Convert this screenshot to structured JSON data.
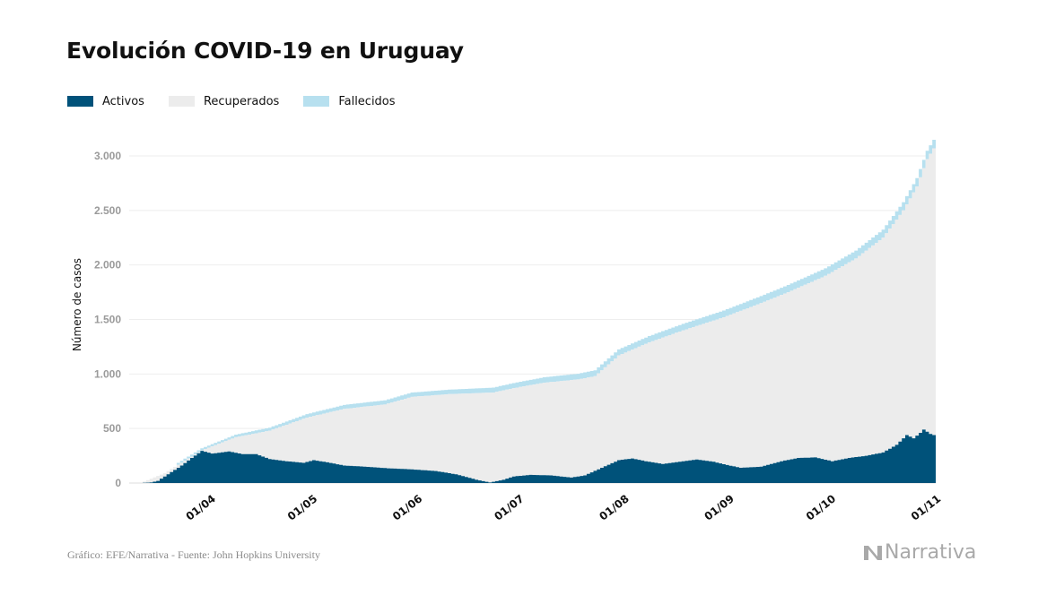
{
  "header": {
    "title": "Evolución COVID-19 en Uruguay"
  },
  "legend": [
    {
      "label": "Activos",
      "color": "#00527a"
    },
    {
      "label": "Recuperados",
      "color": "#ececec"
    },
    {
      "label": "Fallecidos",
      "color": "#b7e0ef"
    }
  ],
  "footer": {
    "source": "Gráfico: EFE/Narrativa - Fuente: John Hopkins University"
  },
  "logo": {
    "text": "Narrativa",
    "icon": "narrativa-n-icon"
  },
  "chart_data": {
    "type": "area",
    "stacked": true,
    "ylabel": "Número de casos",
    "xlabel": "",
    "ylim": [
      0,
      3000
    ],
    "yticks": [
      0,
      500,
      1000,
      1500,
      2000,
      2500,
      3000
    ],
    "ytick_labels": [
      "0",
      "500",
      "1.000",
      "1.500",
      "2.000",
      "2.500",
      "3.000"
    ],
    "xticks": [
      "2020-04-01",
      "2020-05-01",
      "2020-06-01",
      "2020-07-01",
      "2020-08-01",
      "2020-09-01",
      "2020-10-01",
      "2020-11-01"
    ],
    "xtick_labels": [
      "01/04",
      "01/05",
      "01/06",
      "01/07",
      "01/08",
      "01/09",
      "01/10",
      "01/11"
    ],
    "x_range": [
      "2020-03-10",
      "2020-11-03"
    ],
    "grid": true,
    "legend_position": "top-left",
    "series": [
      {
        "name": "Activos",
        "color": "#00527a",
        "points": [
          [
            "2020-03-13",
            0
          ],
          [
            "2020-03-16",
            5
          ],
          [
            "2020-03-18",
            20
          ],
          [
            "2020-03-20",
            60
          ],
          [
            "2020-03-22",
            100
          ],
          [
            "2020-03-25",
            160
          ],
          [
            "2020-03-28",
            230
          ],
          [
            "2020-03-31",
            295
          ],
          [
            "2020-04-03",
            270
          ],
          [
            "2020-04-08",
            290
          ],
          [
            "2020-04-12",
            265
          ],
          [
            "2020-04-16",
            265
          ],
          [
            "2020-04-20",
            220
          ],
          [
            "2020-04-25",
            200
          ],
          [
            "2020-04-30",
            185
          ],
          [
            "2020-05-03",
            210
          ],
          [
            "2020-05-07",
            190
          ],
          [
            "2020-05-12",
            160
          ],
          [
            "2020-05-18",
            150
          ],
          [
            "2020-05-25",
            135
          ],
          [
            "2020-06-01",
            125
          ],
          [
            "2020-06-08",
            110
          ],
          [
            "2020-06-14",
            80
          ],
          [
            "2020-06-20",
            30
          ],
          [
            "2020-06-24",
            5
          ],
          [
            "2020-06-28",
            30
          ],
          [
            "2020-07-01",
            60
          ],
          [
            "2020-07-06",
            75
          ],
          [
            "2020-07-12",
            70
          ],
          [
            "2020-07-18",
            50
          ],
          [
            "2020-07-22",
            70
          ],
          [
            "2020-07-27",
            140
          ],
          [
            "2020-08-01",
            210
          ],
          [
            "2020-08-05",
            225
          ],
          [
            "2020-08-09",
            200
          ],
          [
            "2020-08-14",
            175
          ],
          [
            "2020-08-20",
            200
          ],
          [
            "2020-08-24",
            215
          ],
          [
            "2020-08-29",
            195
          ],
          [
            "2020-09-02",
            165
          ],
          [
            "2020-09-06",
            140
          ],
          [
            "2020-09-12",
            150
          ],
          [
            "2020-09-18",
            200
          ],
          [
            "2020-09-23",
            230
          ],
          [
            "2020-09-28",
            235
          ],
          [
            "2020-10-03",
            200
          ],
          [
            "2020-10-08",
            230
          ],
          [
            "2020-10-13",
            250
          ],
          [
            "2020-10-18",
            280
          ],
          [
            "2020-10-22",
            350
          ],
          [
            "2020-10-25",
            440
          ],
          [
            "2020-10-27",
            410
          ],
          [
            "2020-10-29",
            460
          ],
          [
            "2020-10-30",
            490
          ],
          [
            "2020-11-01",
            450
          ],
          [
            "2020-11-02",
            440
          ]
        ]
      },
      {
        "name": "Recuperados",
        "color": "#ececec",
        "cumulative_top": true,
        "points": [
          [
            "2020-03-13",
            0
          ],
          [
            "2020-03-20",
            90
          ],
          [
            "2020-03-31",
            300
          ],
          [
            "2020-04-10",
            420
          ],
          [
            "2020-04-20",
            480
          ],
          [
            "2020-05-01",
            600
          ],
          [
            "2020-05-12",
            680
          ],
          [
            "2020-05-24",
            720
          ],
          [
            "2020-06-01",
            790
          ],
          [
            "2020-06-12",
            815
          ],
          [
            "2020-06-25",
            830
          ],
          [
            "2020-07-01",
            870
          ],
          [
            "2020-07-10",
            920
          ],
          [
            "2020-07-20",
            950
          ],
          [
            "2020-07-25",
            980
          ],
          [
            "2020-08-01",
            1170
          ],
          [
            "2020-08-10",
            1290
          ],
          [
            "2020-08-20",
            1400
          ],
          [
            "2020-09-01",
            1520
          ],
          [
            "2020-09-12",
            1650
          ],
          [
            "2020-09-20",
            1750
          ],
          [
            "2020-10-01",
            1900
          ],
          [
            "2020-10-10",
            2060
          ],
          [
            "2020-10-18",
            2250
          ],
          [
            "2020-10-24",
            2500
          ],
          [
            "2020-10-28",
            2720
          ],
          [
            "2020-10-31",
            2970
          ],
          [
            "2020-11-02",
            3070
          ]
        ]
      },
      {
        "name": "Fallecidos",
        "color": "#b7e0ef",
        "points": [
          [
            "2020-03-13",
            0
          ],
          [
            "2020-03-31",
            1
          ],
          [
            "2020-04-15",
            8
          ],
          [
            "2020-05-15",
            19
          ],
          [
            "2020-06-15",
            24
          ],
          [
            "2020-07-15",
            33
          ],
          [
            "2020-08-15",
            41
          ],
          [
            "2020-09-15",
            47
          ],
          [
            "2020-10-15",
            55
          ],
          [
            "2020-11-02",
            60
          ]
        ]
      }
    ]
  }
}
